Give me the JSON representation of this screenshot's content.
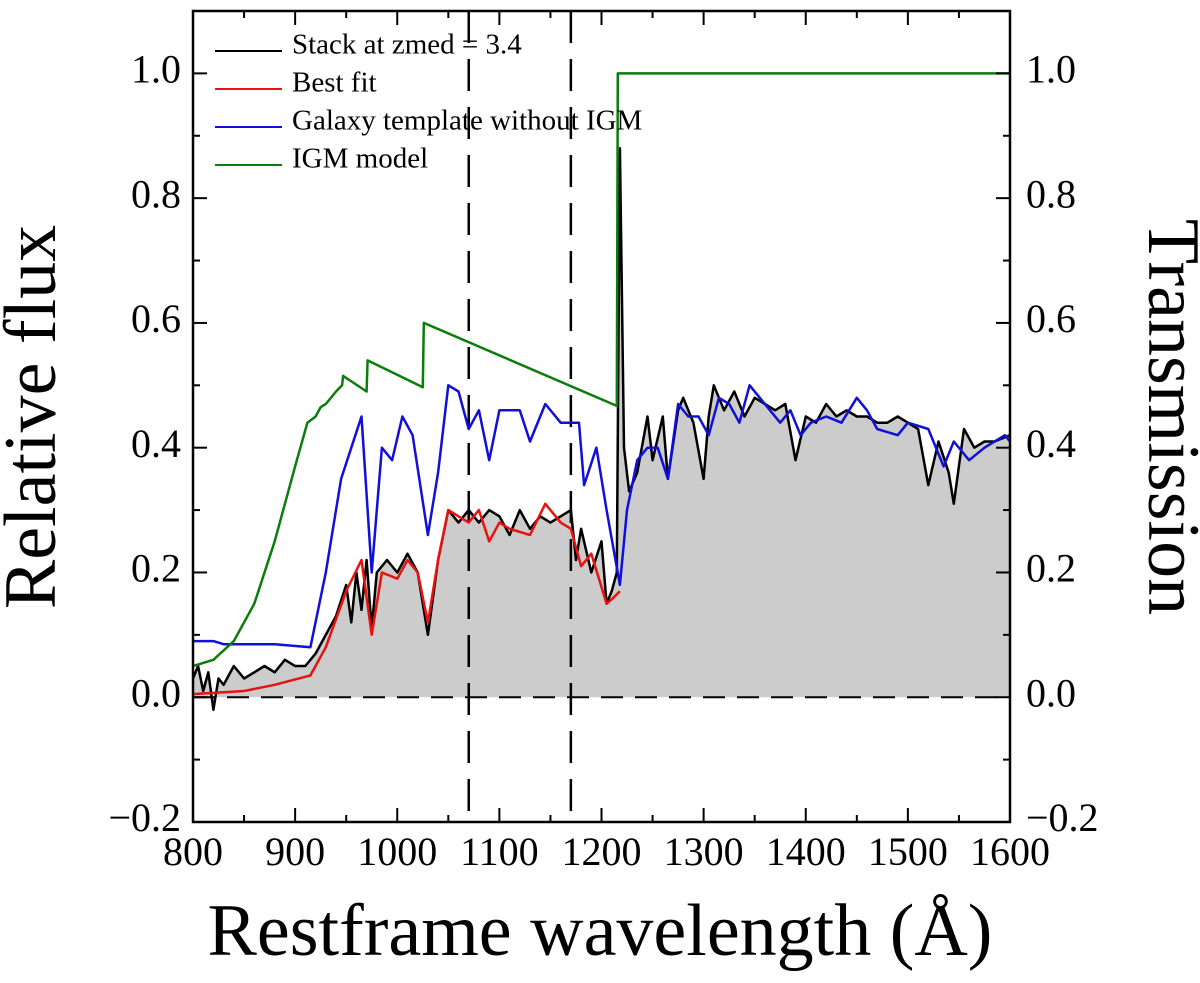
{
  "chart_data": {
    "type": "line",
    "xlabel": "Restframe wavelength (Å)",
    "ylabel": "Relative flux",
    "y2label": "Transmission",
    "xlim": [
      800,
      1600
    ],
    "xticks": [
      800,
      900,
      1000,
      1100,
      1200,
      1300,
      1400,
      1500,
      1600
    ],
    "ylim": [
      -0.2,
      1.1
    ],
    "yticks": [
      {
        "value": -0.2,
        "label": "−0.2"
      },
      {
        "value": 0,
        "label": "0.0"
      },
      0.2,
      0.4,
      0.6,
      0.8,
      {
        "value": 1,
        "label": "1.0"
      }
    ],
    "y2lim": [
      -0.2,
      1.1
    ],
    "y2ticks": [
      {
        "value": -0.2,
        "label": "−0.2"
      },
      {
        "value": 0,
        "label": "0.0"
      },
      0.2,
      0.4,
      0.6,
      0.8,
      {
        "value": 1,
        "label": "1.0"
      }
    ],
    "vlines": [
      1070,
      1170
    ],
    "hlines": [
      0
    ],
    "legend": "upper left",
    "series": [
      {
        "name": "Stack at zmed = 3.4",
        "color": "#000000",
        "fill": "#cccccc",
        "x": [
          800,
          805,
          810,
          815,
          820,
          825,
          830,
          840,
          850,
          860,
          870,
          880,
          890,
          900,
          910,
          920,
          930,
          940,
          950,
          955,
          960,
          965,
          970,
          975,
          980,
          990,
          1000,
          1010,
          1020,
          1030,
          1040,
          1050,
          1060,
          1070,
          1080,
          1090,
          1100,
          1110,
          1120,
          1130,
          1140,
          1150,
          1160,
          1170,
          1175,
          1180,
          1190,
          1200,
          1205,
          1210,
          1215,
          1218,
          1222,
          1227,
          1235,
          1245,
          1250,
          1260,
          1265,
          1275,
          1280,
          1290,
          1300,
          1305,
          1310,
          1320,
          1330,
          1340,
          1350,
          1360,
          1370,
          1380,
          1390,
          1400,
          1410,
          1420,
          1430,
          1440,
          1450,
          1460,
          1470,
          1480,
          1490,
          1500,
          1510,
          1520,
          1530,
          1540,
          1545,
          1555,
          1565,
          1575,
          1585,
          1600
        ],
        "values": [
          0.03,
          0.05,
          0.01,
          0.04,
          -0.02,
          0.03,
          0.02,
          0.05,
          0.03,
          0.04,
          0.05,
          0.04,
          0.06,
          0.05,
          0.05,
          0.07,
          0.1,
          0.13,
          0.18,
          0.12,
          0.2,
          0.14,
          0.22,
          0.11,
          0.2,
          0.22,
          0.2,
          0.23,
          0.2,
          0.1,
          0.22,
          0.3,
          0.28,
          0.3,
          0.28,
          0.3,
          0.29,
          0.26,
          0.3,
          0.27,
          0.29,
          0.28,
          0.29,
          0.3,
          0.22,
          0.27,
          0.2,
          0.25,
          0.15,
          0.17,
          0.2,
          0.88,
          0.4,
          0.33,
          0.36,
          0.45,
          0.38,
          0.45,
          0.35,
          0.46,
          0.48,
          0.44,
          0.35,
          0.45,
          0.5,
          0.46,
          0.49,
          0.45,
          0.48,
          0.47,
          0.46,
          0.47,
          0.38,
          0.45,
          0.44,
          0.47,
          0.45,
          0.46,
          0.45,
          0.45,
          0.44,
          0.44,
          0.45,
          0.44,
          0.43,
          0.34,
          0.41,
          0.36,
          0.31,
          0.43,
          0.4,
          0.41,
          0.41,
          0.42
        ]
      },
      {
        "name": "Best fit",
        "color": "#e8130f",
        "x": [
          800,
          850,
          880,
          915,
          930,
          950,
          965,
          975,
          985,
          1000,
          1010,
          1020,
          1030,
          1040,
          1050,
          1060,
          1070,
          1080,
          1090,
          1100,
          1110,
          1130,
          1145,
          1160,
          1170,
          1180,
          1190,
          1205,
          1212,
          1218
        ],
        "values": [
          0.005,
          0.01,
          0.02,
          0.035,
          0.08,
          0.17,
          0.22,
          0.1,
          0.2,
          0.19,
          0.22,
          0.2,
          0.12,
          0.22,
          0.3,
          0.29,
          0.28,
          0.3,
          0.25,
          0.28,
          0.27,
          0.26,
          0.31,
          0.28,
          0.27,
          0.21,
          0.23,
          0.15,
          0.16,
          0.17
        ]
      },
      {
        "name": "Galaxy template without IGM",
        "color": "#1010d8",
        "x": [
          800,
          820,
          830,
          850,
          880,
          915,
          930,
          945,
          955,
          965,
          975,
          985,
          995,
          1005,
          1015,
          1030,
          1040,
          1050,
          1060,
          1070,
          1080,
          1090,
          1100,
          1120,
          1130,
          1145,
          1160,
          1178,
          1183,
          1195,
          1205,
          1218,
          1225,
          1235,
          1245,
          1255,
          1265,
          1275,
          1285,
          1295,
          1305,
          1315,
          1325,
          1335,
          1345,
          1355,
          1365,
          1375,
          1385,
          1395,
          1405,
          1420,
          1435,
          1450,
          1460,
          1470,
          1490,
          1500,
          1520,
          1535,
          1545,
          1560,
          1575,
          1595,
          1600
        ],
        "values": [
          0.09,
          0.09,
          0.085,
          0.085,
          0.085,
          0.08,
          0.2,
          0.35,
          0.4,
          0.45,
          0.2,
          0.4,
          0.38,
          0.45,
          0.42,
          0.26,
          0.36,
          0.5,
          0.49,
          0.43,
          0.46,
          0.38,
          0.46,
          0.46,
          0.41,
          0.47,
          0.44,
          0.44,
          0.34,
          0.4,
          0.3,
          0.18,
          0.3,
          0.38,
          0.4,
          0.4,
          0.35,
          0.47,
          0.45,
          0.45,
          0.42,
          0.48,
          0.47,
          0.44,
          0.5,
          0.48,
          0.46,
          0.44,
          0.46,
          0.42,
          0.44,
          0.45,
          0.44,
          0.48,
          0.46,
          0.43,
          0.42,
          0.44,
          0.43,
          0.37,
          0.41,
          0.38,
          0.4,
          0.42,
          0.41
        ]
      },
      {
        "name": "IGM model",
        "color": "#0a7d0a",
        "axis": "y2",
        "x": [
          800,
          820,
          840,
          860,
          880,
          900,
          912,
          920,
          925,
          930,
          935,
          940,
          946,
          947,
          970,
          971,
          1025,
          1026,
          1215,
          1216,
          1600
        ],
        "values": [
          0.05,
          0.06,
          0.09,
          0.15,
          0.25,
          0.37,
          0.44,
          0.45,
          0.465,
          0.47,
          0.48,
          0.49,
          0.5,
          0.515,
          0.49,
          0.54,
          0.497,
          0.6,
          0.467,
          1,
          1
        ]
      }
    ]
  }
}
